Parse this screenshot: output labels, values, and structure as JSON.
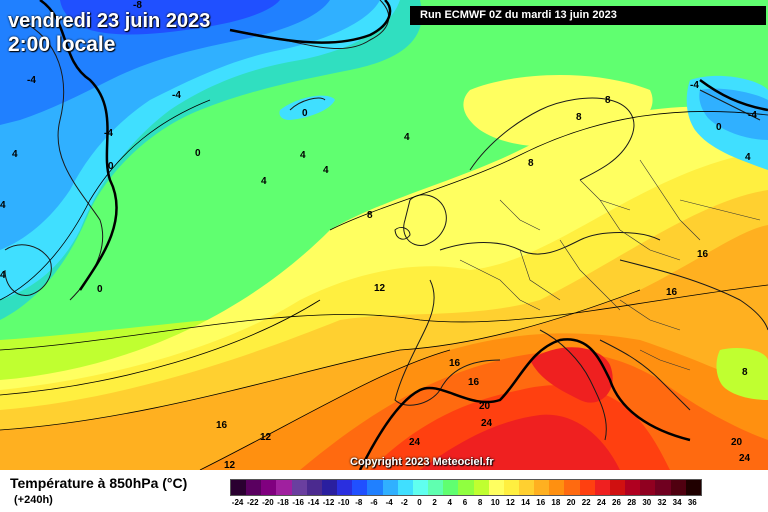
{
  "header": {
    "date_line": "vendredi 23 juin 2023",
    "time_line": "2:00 locale",
    "run_info": "Run ECMWF 0Z du mardi 13 juin 2023",
    "copyright": "Copyright 2023 Meteociel.fr"
  },
  "legend": {
    "title": "Température à 850hPa (°C)",
    "subtitle": "(+240h)",
    "ticks": [
      "-24",
      "-22",
      "-20",
      "-18",
      "-16",
      "-14",
      "-12",
      "-10",
      "-8",
      "-6",
      "-4",
      "-2",
      "0",
      "2",
      "4",
      "6",
      "8",
      "10",
      "12",
      "14",
      "16",
      "18",
      "20",
      "22",
      "24",
      "26",
      "28",
      "30",
      "32",
      "34",
      "36"
    ],
    "colors": [
      "#2a0030",
      "#5a0060",
      "#80007f",
      "#a0209f",
      "#6a3f9f",
      "#4b2a8f",
      "#2a1f9f",
      "#2a2fdf",
      "#2050ff",
      "#2080ff",
      "#30b0ff",
      "#40dfff",
      "#60ffef",
      "#60ffb0",
      "#60ff70",
      "#90ff40",
      "#c0ff30",
      "#ffff60",
      "#ffef40",
      "#ffd030",
      "#ffb020",
      "#ff9010",
      "#ff6a10",
      "#ff4010",
      "#ef2020",
      "#d01010",
      "#b00020",
      "#900020",
      "#700020",
      "#500010",
      "#200000"
    ]
  },
  "contour_labels": [
    {
      "text": "-8"
    },
    {
      "text": "-4"
    },
    {
      "text": "-4"
    },
    {
      "text": "-4"
    },
    {
      "text": "0"
    },
    {
      "text": "0"
    },
    {
      "text": "0"
    },
    {
      "text": "0"
    },
    {
      "text": "4"
    },
    {
      "text": "4"
    },
    {
      "text": "4"
    },
    {
      "text": "4"
    },
    {
      "text": "4"
    },
    {
      "text": "4"
    },
    {
      "text": "4"
    },
    {
      "text": "8"
    },
    {
      "text": "8"
    },
    {
      "text": "8"
    },
    {
      "text": "8"
    },
    {
      "text": "8"
    },
    {
      "text": "12"
    },
    {
      "text": "12"
    },
    {
      "text": "12"
    },
    {
      "text": "16"
    },
    {
      "text": "16"
    },
    {
      "text": "16"
    },
    {
      "text": "16"
    },
    {
      "text": "16"
    },
    {
      "text": "20"
    },
    {
      "text": "20"
    },
    {
      "text": "24"
    },
    {
      "text": "24"
    },
    {
      "text": "24"
    },
    {
      "text": "-4"
    },
    {
      "text": "-4"
    },
    {
      "text": "0"
    },
    {
      "text": "4"
    }
  ]
}
